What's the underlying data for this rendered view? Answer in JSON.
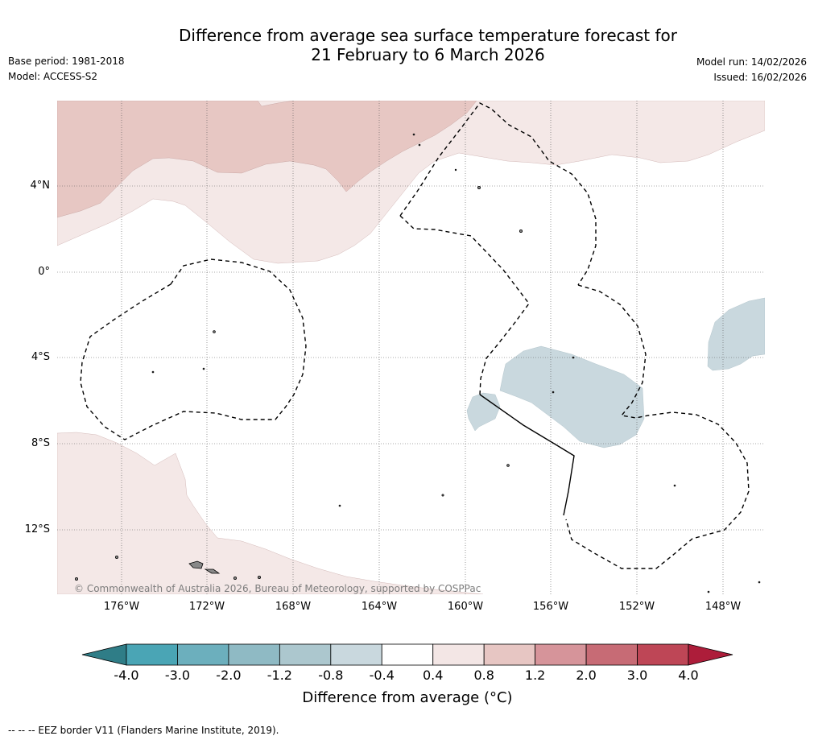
{
  "header": {
    "title_line1": "Difference from average sea surface temperature forecast for",
    "title_line2": "21 February to 6 March 2026",
    "base_period": "Base period: 1981-2018",
    "model": "Model: ACCESS-S2",
    "model_run": "Model run: 14/02/2026",
    "issued": "Issued: 16/02/2026"
  },
  "map": {
    "lat_labels": [
      "4°N",
      "0°",
      "4°S",
      "8°S",
      "12°S"
    ],
    "lon_labels": [
      "176°W",
      "172°W",
      "168°W",
      "164°W",
      "160°W",
      "156°W",
      "152°W",
      "148°W"
    ],
    "copyright": "© Commonwealth of Australia 2026, Bureau of Meteorology, supported by COSPPac"
  },
  "colorbar": {
    "ticks": [
      "-4.0",
      "-3.0",
      "-2.0",
      "-1.2",
      "-0.8",
      "-0.4",
      "0.4",
      "0.8",
      "1.2",
      "2.0",
      "3.0",
      "4.0"
    ],
    "colors": [
      "#2f7d87",
      "#4aa5b5",
      "#6cafbd",
      "#8fbac4",
      "#acc7ce",
      "#c9d8de",
      "#ffffff",
      "#f3e6e5",
      "#e7c6c3",
      "#d6949a",
      "#c76b75",
      "#be4656",
      "#ad1d3a"
    ],
    "title": "Difference from average (°C)"
  },
  "footnote": "-- -- -- EEZ border V11 (Flanders Marine Institute, 2019)."
}
